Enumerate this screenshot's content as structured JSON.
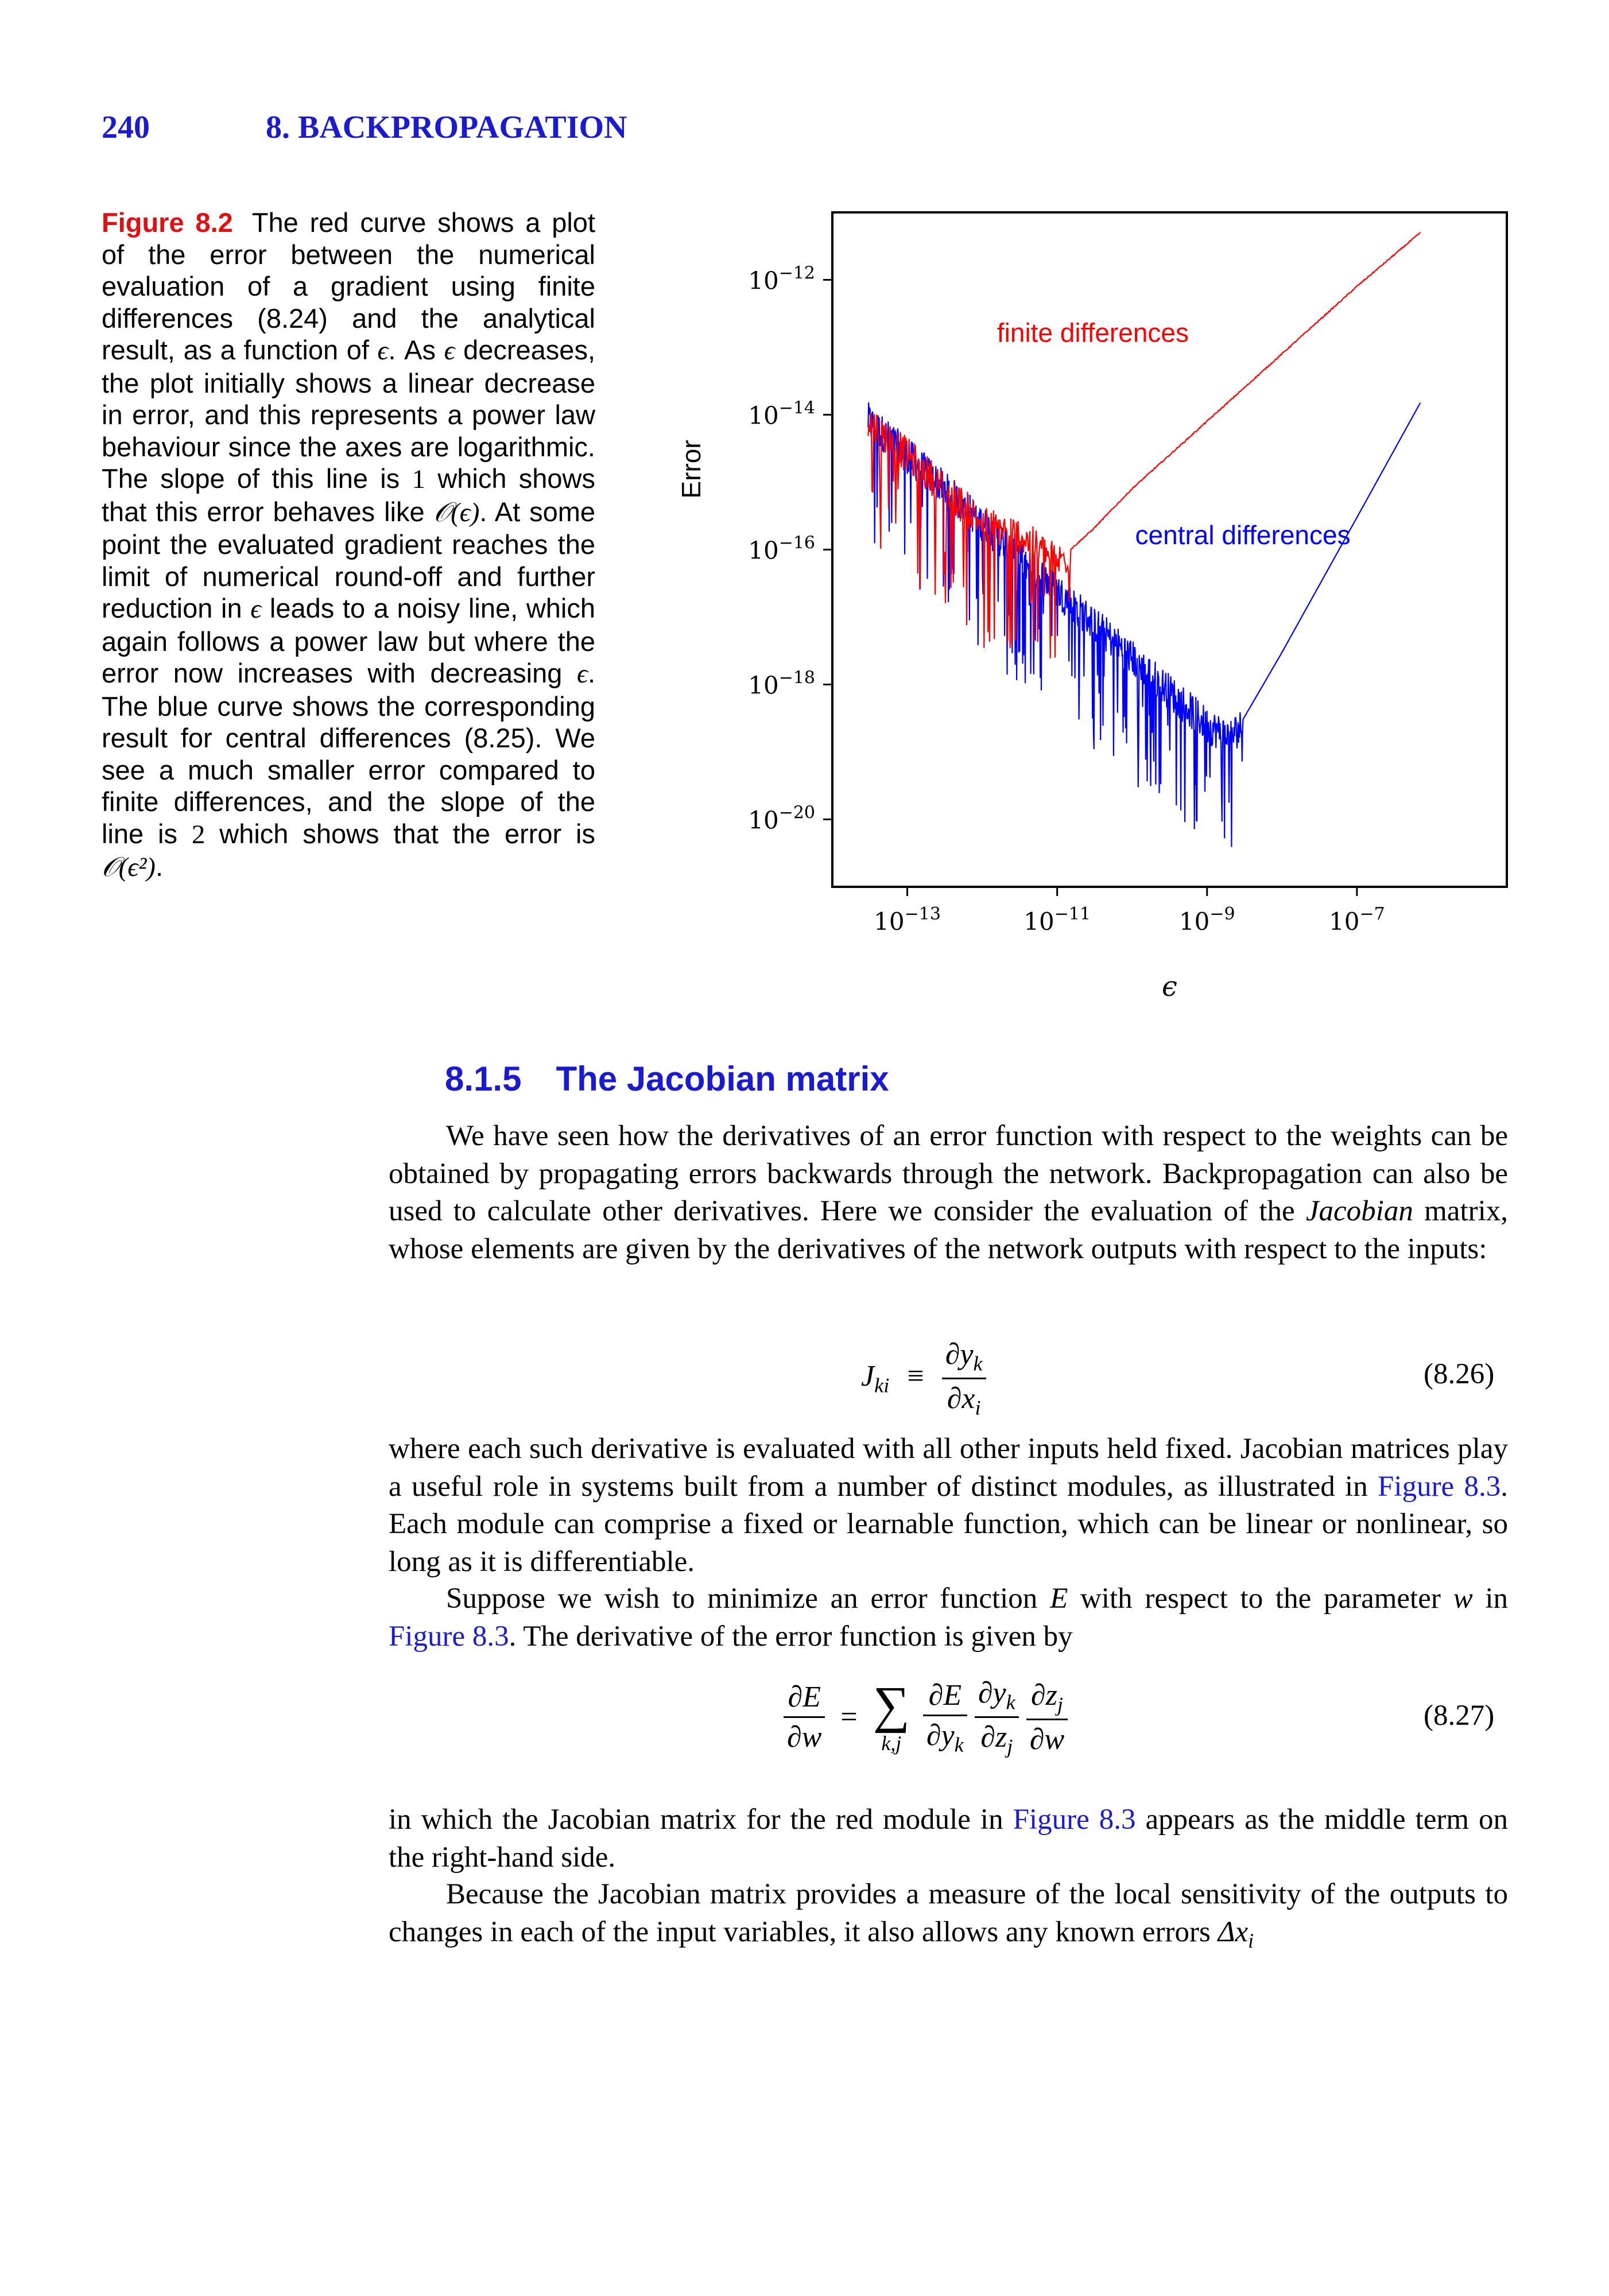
{
  "header": {
    "page_number": "240",
    "chapter": "8. BACKPROPAGATION"
  },
  "caption": {
    "label": "Figure 8.2",
    "text_1": "The red curve shows a plot of the error between the numerical evaluation of a gradient using finite differences (8.24) and the analytical result, as a function of",
    "sym_eps": "ϵ",
    "text_2": ". As",
    "text_3": "decreases, the plot initially shows a linear decrease in error, and this represents a power law behaviour since the axes are logarithmic. The slope of this line is",
    "one": "1",
    "text_4": "which shows that this error behaves like",
    "big_o_eps": "𝒪(ϵ)",
    "text_5": ". At some point the evaluated gradient reaches the limit of numerical round-off and further reduction in",
    "text_6": "leads to a noisy line, which again follows a power law but where the error now increases with decreasing",
    "text_7": ". The blue curve shows the corresponding result for central differences (8.25). We see a much smaller error compared to finite differences, and the slope of the line is",
    "two": "2",
    "text_8": "which shows that the error is",
    "big_o_eps2": "𝒪(ϵ²)",
    "text_9": "."
  },
  "chart_data": {
    "type": "line",
    "xlabel": "ϵ",
    "ylabel": "Error",
    "x_scale": "log",
    "y_scale": "log",
    "xlim": [
      1e-14,
      1e-05
    ],
    "ylim": [
      1e-21,
      1e-11
    ],
    "x_ticks": [
      {
        "value": 1e-13,
        "base": "10",
        "exp": "−13"
      },
      {
        "value": 1e-11,
        "base": "10",
        "exp": "−11"
      },
      {
        "value": 1e-09,
        "base": "10",
        "exp": "−9"
      },
      {
        "value": 1e-07,
        "base": "10",
        "exp": "−7"
      }
    ],
    "y_ticks": [
      {
        "value": 1e-12,
        "base": "10",
        "exp": "−12"
      },
      {
        "value": 1e-14,
        "base": "10",
        "exp": "−14"
      },
      {
        "value": 1e-16,
        "base": "10",
        "exp": "−16"
      },
      {
        "value": 1e-18,
        "base": "10",
        "exp": "−18"
      },
      {
        "value": 1e-20,
        "base": "10",
        "exp": "−20"
      }
    ],
    "grid": false,
    "series": [
      {
        "name": "finite differences",
        "color": "#ff0000",
        "x": [
          3e-14,
          1e-13,
          3e-13,
          1e-12,
          3e-12,
          6e-12,
          1e-11,
          1.5e-11,
          3e-11,
          1e-10,
          1e-09,
          1e-08,
          1e-07,
          7e-07
        ],
        "y": [
          1e-14,
          3e-15,
          1e-15,
          3e-16,
          2e-16,
          1.2e-16,
          8e-17,
          1e-16,
          2e-16,
          8e-16,
          8e-15,
          8e-14,
          8e-13,
          5e-12
        ]
      },
      {
        "name": "central differences",
        "color": "#0000ff",
        "x": [
          3e-14,
          1e-13,
          1e-12,
          1e-11,
          1e-10,
          1e-09,
          2e-09,
          3e-09,
          1e-08,
          1e-07,
          7e-07
        ],
        "y": [
          1e-14,
          3e-15,
          3e-16,
          3e-17,
          3e-18,
          3e-19,
          2e-19,
          3e-19,
          3e-18,
          3e-16,
          1.5e-14
        ]
      }
    ],
    "annotations": [
      {
        "text": "finite differences",
        "color": "#ff0000",
        "x": 3e-11,
        "y": 1.2e-13
      },
      {
        "text": "central differences",
        "color": "#0000ff",
        "x": 3e-09,
        "y": 1.2e-16
      }
    ]
  },
  "section": {
    "number": "8.1.5",
    "title": "The Jacobian matrix"
  },
  "body": {
    "p1": "We have seen how the derivatives of an error function with respect to the weights can be obtained by propagating errors backwards through the network. Backpropagation can also be used to calculate other derivatives. Here we consider the evaluation of the",
    "p1_em": "Jacobian",
    "p1_end": "matrix, whose elements are given by the derivatives of the network outputs with respect to the inputs:",
    "eq1_lhs": "J",
    "eq1_lhs_sub": "ki",
    "eq1_op": "≡",
    "eq1_num": "∂y",
    "eq1_num_sub": "k",
    "eq1_den": "∂x",
    "eq1_den_sub": "i",
    "eq1_number": "(8.26)",
    "p2": "where each such derivative is evaluated with all other inputs held fixed. Jacobian matrices play a useful role in systems built from a number of distinct modules, as illustrated in",
    "p2_link": "Figure 8.3",
    "p2_end": ". Each module can comprise a fixed or learnable function, which can be linear or nonlinear, so long as it is differentiable.",
    "p3_a": "Suppose we wish to minimize an error function",
    "p3_E": "E",
    "p3_b": "with respect to the parameter",
    "p3_w": "w",
    "p3_c": "in",
    "p3_link": "Figure 8.3",
    "p3_d": ". The derivative of the error function is given by",
    "eq2_lhs_num": "∂E",
    "eq2_lhs_den": "∂w",
    "eq2_op": "=",
    "eq2_sum": "∑",
    "eq2_sum_sub": "k,j",
    "eq2_f1_num": "∂E",
    "eq2_f1_den": "∂y",
    "eq2_f1_den_sub": "k",
    "eq2_f2_num": "∂y",
    "eq2_f2_num_sub": "k",
    "eq2_f2_den": "∂z",
    "eq2_f2_den_sub": "j",
    "eq2_f3_num": "∂z",
    "eq2_f3_num_sub": "j",
    "eq2_f3_den": "∂w",
    "eq2_number": "(8.27)",
    "p4_a": "in which the Jacobian matrix for the red module in",
    "p4_link": "Figure 8.3",
    "p4_b": "appears as the middle term on the right-hand side.",
    "p5": "Because the Jacobian matrix provides a measure of the local sensitivity of the outputs to changes in each of the input variables, it also allows any known errors",
    "p5_delta": "Δx",
    "p5_delta_sub": "i"
  }
}
